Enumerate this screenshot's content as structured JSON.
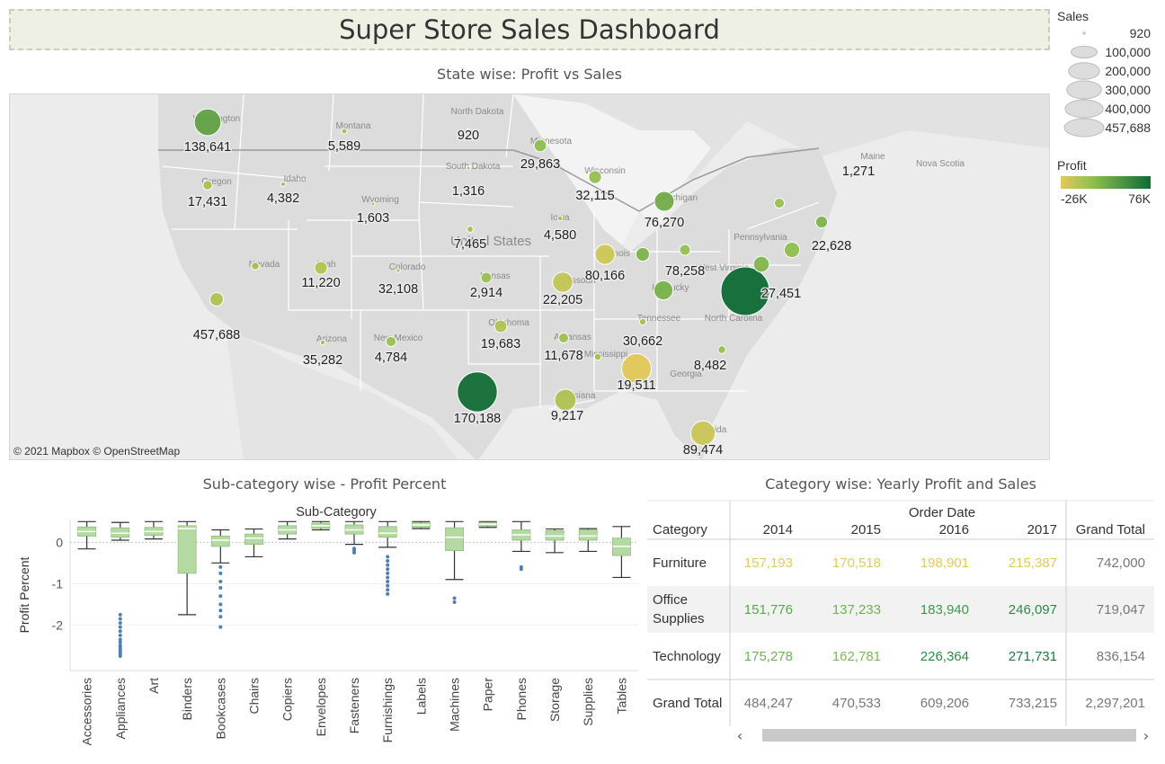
{
  "title": "Super Store Sales Dashboard",
  "map": {
    "header": "State wise: Profit vs Sales",
    "credit": "© 2021 Mapbox © OpenStreetMap",
    "places": [
      "Washington",
      "Montana",
      "North Dakota",
      "Minnesota",
      "Oregon",
      "Idaho",
      "South Dakota",
      "Wisconsin",
      "Michigan",
      "Maine",
      "Nova Scotia",
      "Wyoming",
      "Iowa",
      "United States",
      "Nevada",
      "Utah",
      "Colorado",
      "Kansas",
      "Missouri",
      "Illinois",
      "Pennsylvania",
      "Kentucky",
      "Oklahoma",
      "Tennessee",
      "North Carolina",
      "New Mexico",
      "Arizona",
      "Arkansas",
      "Mississippi",
      "Georgia",
      "Louisiana",
      "Florida",
      "West Virginia"
    ],
    "colors": {
      "low": "#e3c95a",
      "mid": "#8fc04f",
      "high": "#0e6b34",
      "land": "#dcdcdc",
      "water": "#ececec",
      "border": "#ffffff"
    }
  },
  "legend": {
    "sales_title": "Sales",
    "sales_labels": [
      "920",
      "100,000",
      "200,000",
      "300,000",
      "400,000",
      "457,688"
    ],
    "profit_title": "Profit",
    "profit_min": "-26K",
    "profit_max": "76K"
  },
  "boxplot": {
    "header": "Sub-category wise - Profit Percent",
    "axis_title": "Sub-Category",
    "ylabel": "Profit Percent"
  },
  "table": {
    "header": "Category wise: Yearly Profit and Sales",
    "col_group": "Order Date",
    "row_header": "Category"
  },
  "chart_data": [
    {
      "type": "scatter",
      "subtype": "bubble-map",
      "title": "State wise: Profit vs Sales",
      "size_measure": "Sales",
      "color_measure": "Profit",
      "color_range": [
        -26000,
        76000
      ],
      "points": [
        {
          "label": "138,641",
          "sales": 138641,
          "profit": 33400
        },
        {
          "label": "5,589",
          "sales": 5589,
          "profit": 1800
        },
        {
          "label": "920",
          "sales": 920,
          "profit": 230
        },
        {
          "label": "29,863",
          "sales": 29863,
          "profit": 10800
        },
        {
          "label": "17,431",
          "sales": 17431,
          "profit": -1200
        },
        {
          "label": "4,382",
          "sales": 4382,
          "profit": 800
        },
        {
          "label": "1,316",
          "sales": 1316,
          "profit": 400
        },
        {
          "label": "32,115",
          "sales": 32115,
          "profit": 8400
        },
        {
          "label": "76,270",
          "sales": 76270,
          "profit": 24500
        },
        {
          "label": "1,271",
          "sales": 1271,
          "profit": 450
        },
        {
          "label": "1,603",
          "sales": 1603,
          "profit": 100
        },
        {
          "label": "4,580",
          "sales": 4580,
          "profit": 1200
        },
        {
          "label": "7,465",
          "sales": 7465,
          "profit": 2200
        },
        {
          "label": "11,220",
          "sales": 11220,
          "profit": 2500
        },
        {
          "label": "32,108",
          "sales": 32108,
          "profit": -6500
        },
        {
          "label": "2,914",
          "sales": 2914,
          "profit": 840
        },
        {
          "label": "22,205",
          "sales": 22205,
          "profit": 6400
        },
        {
          "label": "80,166",
          "sales": 80166,
          "profit": -12600
        },
        {
          "label": "78,258",
          "sales": 78258,
          "profit": -16900
        },
        {
          "label": "22,628",
          "sales": 22628,
          "profit": 7000
        },
        {
          "label": "27,451",
          "sales": 27451,
          "profit": 18400
        },
        {
          "label": "457,688",
          "sales": 457688,
          "profit": 76400
        },
        {
          "label": "35,282",
          "sales": 35282,
          "profit": -3400
        },
        {
          "label": "4,784",
          "sales": 4784,
          "profit": 1150
        },
        {
          "label": "19,683",
          "sales": 19683,
          "profit": 4900
        },
        {
          "label": "30,662",
          "sales": 30662,
          "profit": -5300
        },
        {
          "label": "8,482",
          "sales": 8482,
          "profit": 1800
        },
        {
          "label": "11,678",
          "sales": 11678,
          "profit": 4000
        },
        {
          "label": "19,511",
          "sales": 19511,
          "profit": 3100
        },
        {
          "label": "9,217",
          "sales": 9217,
          "profit": 2200
        },
        {
          "label": "170,188",
          "sales": 170188,
          "profit": -25700
        },
        {
          "label": "89,474",
          "sales": 89474,
          "profit": -3400
        },
        {
          "label": "",
          "sales": 310876,
          "profit": 74000
        },
        {
          "label": "",
          "sales": 116512,
          "profit": -15500
        },
        {
          "label": "",
          "sales": 19400,
          "profit": 6100
        },
        {
          "label": "",
          "sales": 36000,
          "profit": 19000
        },
        {
          "label": "",
          "sales": 47000,
          "profit": 9000
        },
        {
          "label": "",
          "sales": 70636,
          "profit": 21000
        },
        {
          "label": "",
          "sales": 49095,
          "profit": 16200
        }
      ]
    },
    {
      "type": "boxplot",
      "title": "Sub-category wise - Profit Percent",
      "xlabel": "Sub-Category",
      "ylabel": "Profit Percent",
      "ylim": [
        -3.1,
        0.55
      ],
      "yticks": [
        0,
        -1,
        -2
      ],
      "categories": [
        "Accessories",
        "Appliances",
        "Art",
        "Binders",
        "Bookcases",
        "Chairs",
        "Copiers",
        "Envelopes",
        "Fasteners",
        "Furnishings",
        "Labels",
        "Machines",
        "Paper",
        "Phones",
        "Storage",
        "Supplies",
        "Tables"
      ],
      "boxes": [
        {
          "whisker_low": -0.16,
          "q1": 0.15,
          "median": 0.26,
          "q3": 0.37,
          "whisker_high": 0.5,
          "outliers": []
        },
        {
          "whisker_low": 0.05,
          "q1": 0.12,
          "median": 0.22,
          "q3": 0.35,
          "whisker_high": 0.48,
          "outliers": [
            -1.75,
            -1.85,
            -1.95,
            -2.05,
            -2.15,
            -2.25,
            -2.35,
            -2.42,
            -2.5,
            -2.55,
            -2.6,
            -2.65,
            -2.7,
            -2.75
          ]
        },
        {
          "whisker_low": 0.08,
          "q1": 0.17,
          "median": 0.26,
          "q3": 0.36,
          "whisker_high": 0.5,
          "outliers": []
        },
        {
          "whisker_low": -1.75,
          "q1": -0.75,
          "median": 0.33,
          "q3": 0.4,
          "whisker_high": 0.5,
          "outliers": []
        },
        {
          "whisker_low": -0.5,
          "q1": -0.1,
          "median": 0.05,
          "q3": 0.15,
          "whisker_high": 0.3,
          "outliers": [
            -0.6,
            -0.75,
            -0.95,
            -1.1,
            -1.3,
            -1.5,
            -1.65,
            -1.8,
            -2.05
          ]
        },
        {
          "whisker_low": -0.35,
          "q1": -0.05,
          "median": 0.1,
          "q3": 0.2,
          "whisker_high": 0.32,
          "outliers": []
        },
        {
          "whisker_low": 0.08,
          "q1": 0.2,
          "median": 0.3,
          "q3": 0.4,
          "whisker_high": 0.5,
          "outliers": []
        },
        {
          "whisker_low": 0.3,
          "q1": 0.34,
          "median": 0.4,
          "q3": 0.46,
          "whisker_high": 0.5,
          "outliers": []
        },
        {
          "whisker_low": -0.05,
          "q1": 0.2,
          "median": 0.3,
          "q3": 0.42,
          "whisker_high": 0.5,
          "outliers": [
            -0.15,
            -0.2,
            -0.25
          ]
        },
        {
          "whisker_low": -0.12,
          "q1": 0.12,
          "median": 0.22,
          "q3": 0.38,
          "whisker_high": 0.5,
          "outliers": [
            -0.35,
            -0.45,
            -0.55,
            -0.65,
            -0.75,
            -0.85,
            -0.95,
            -1.05,
            -1.15,
            -1.25
          ]
        },
        {
          "whisker_low": 0.33,
          "q1": 0.36,
          "median": 0.42,
          "q3": 0.47,
          "whisker_high": 0.5,
          "outliers": []
        },
        {
          "whisker_low": -0.9,
          "q1": -0.2,
          "median": 0.12,
          "q3": 0.35,
          "whisker_high": 0.5,
          "outliers": [
            -1.35,
            -1.45
          ]
        },
        {
          "whisker_low": 0.36,
          "q1": 0.39,
          "median": 0.44,
          "q3": 0.48,
          "whisker_high": 0.5,
          "outliers": []
        },
        {
          "whisker_low": -0.22,
          "q1": 0.05,
          "median": 0.18,
          "q3": 0.3,
          "whisker_high": 0.5,
          "outliers": [
            -0.6,
            -0.65
          ]
        },
        {
          "whisker_low": -0.25,
          "q1": 0.05,
          "median": 0.15,
          "q3": 0.28,
          "whisker_high": 0.32,
          "outliers": []
        },
        {
          "whisker_low": -0.22,
          "q1": 0.05,
          "median": 0.15,
          "q3": 0.3,
          "whisker_high": 0.33,
          "outliers": []
        },
        {
          "whisker_low": -0.85,
          "q1": -0.32,
          "median": -0.1,
          "q3": 0.1,
          "whisker_high": 0.38,
          "outliers": []
        }
      ]
    },
    {
      "type": "table",
      "title": "Category wise: Yearly Profit and Sales",
      "columns": [
        "2014",
        "2015",
        "2016",
        "2017",
        "Grand Total"
      ],
      "rows": [
        {
          "category": "Furniture",
          "values": [
            "157,193",
            "170,518",
            "198,901",
            "215,387"
          ],
          "total": "742,000"
        },
        {
          "category": "Office Supplies",
          "values": [
            "151,776",
            "137,233",
            "183,940",
            "246,097"
          ],
          "total": "719,047"
        },
        {
          "category": "Technology",
          "values": [
            "175,278",
            "162,781",
            "226,364",
            "271,731"
          ],
          "total": "836,154"
        }
      ],
      "grand_total": {
        "category": "Grand Total",
        "values": [
          "484,247",
          "470,533",
          "609,206",
          "733,215"
        ],
        "total": "2,297,201"
      },
      "cell_colors": [
        [
          "#e3c95a",
          "#e3c95a",
          "#e3c95a",
          "#e3c95a"
        ],
        [
          "#5aa84d",
          "#6db356",
          "#3f9a4c",
          "#2f8a47"
        ],
        [
          "#6db356",
          "#7aba5a",
          "#2f8a47",
          "#1c7a3e"
        ]
      ]
    }
  ]
}
